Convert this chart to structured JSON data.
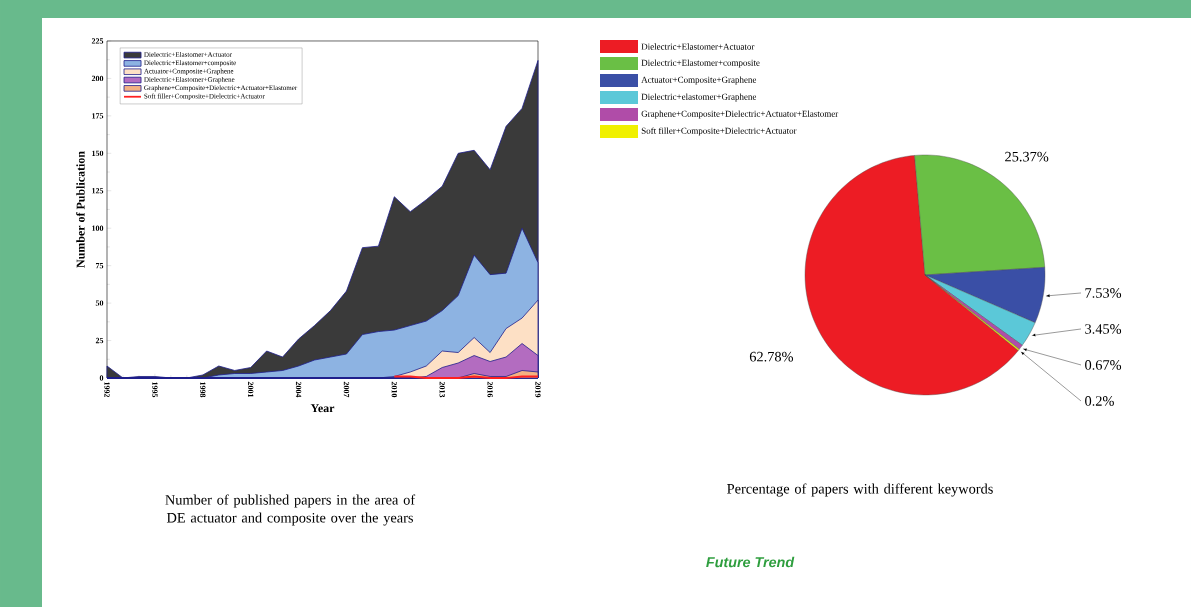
{
  "chart_data": [
    {
      "type": "area",
      "title": "Number of published papers in the area of DE actuator and composite over the years",
      "xlabel": "Year",
      "ylabel": "Number of Publication",
      "x": [
        1992,
        1993,
        1994,
        1995,
        1996,
        1997,
        1998,
        1999,
        2000,
        2001,
        2002,
        2003,
        2004,
        2005,
        2006,
        2007,
        2008,
        2009,
        2010,
        2011,
        2012,
        2013,
        2014,
        2015,
        2016,
        2017,
        2018,
        2019
      ],
      "xlim": [
        1992,
        2019
      ],
      "xticks": [
        1992,
        1995,
        1998,
        2001,
        2004,
        2007,
        2010,
        2013,
        2016,
        2019
      ],
      "ylim": [
        0,
        225
      ],
      "yticks": [
        0,
        25,
        50,
        75,
        100,
        125,
        150,
        175,
        200,
        225
      ],
      "legend": "top left",
      "series": [
        {
          "name": "Dielectric+Elastomer+Actuator",
          "color": "#3a3a3a",
          "values": [
            8,
            0,
            1,
            1,
            0,
            0,
            2,
            8,
            5,
            7,
            18,
            14,
            26,
            35,
            45,
            58,
            87,
            88,
            121,
            111,
            119,
            128,
            150,
            152,
            139,
            168,
            180,
            212
          ]
        },
        {
          "name": "Dielectric+Elastomer+composite",
          "color": "#8db3e2",
          "values": [
            0,
            0,
            0,
            0,
            0,
            0,
            0,
            2,
            3,
            3,
            4,
            5,
            8,
            12,
            14,
            16,
            29,
            31,
            32,
            35,
            38,
            45,
            55,
            82,
            69,
            70,
            100,
            77
          ]
        },
        {
          "name": "Actuator+Composite+Graphene",
          "color": "#fde0c5",
          "values": [
            0,
            0,
            0,
            0,
            0,
            0,
            0,
            0,
            0,
            0,
            0,
            0,
            0,
            0,
            0,
            0,
            0,
            0,
            1,
            4,
            8,
            18,
            17,
            27,
            17,
            33,
            40,
            52
          ]
        },
        {
          "name": "Dielectric+Elastomer+Graphene",
          "color": "#b36cc0",
          "values": [
            0,
            0,
            0,
            0,
            0,
            0,
            0,
            0,
            0,
            0,
            0,
            0,
            0,
            0,
            0,
            0,
            0,
            0,
            0,
            0,
            1,
            7,
            10,
            15,
            11,
            14,
            23,
            15
          ]
        },
        {
          "name": "Graphene+Composite+Dielectric+Actuator+Elastomer",
          "color": "#f4b183",
          "values": [
            0,
            0,
            0,
            0,
            0,
            0,
            0,
            0,
            0,
            0,
            0,
            0,
            0,
            0,
            0,
            0,
            0,
            0,
            0,
            0,
            0,
            0,
            0,
            3,
            1,
            1,
            5,
            4
          ]
        },
        {
          "name": "Soft filler+Composite+Dielectric+Actuator",
          "color": "#ff2020",
          "type": "line",
          "values": [
            null,
            null,
            null,
            null,
            null,
            null,
            null,
            null,
            null,
            null,
            null,
            null,
            null,
            null,
            null,
            null,
            null,
            null,
            1,
            1,
            0,
            0,
            0,
            1,
            0,
            0,
            1,
            1
          ]
        }
      ]
    },
    {
      "type": "pie",
      "title": "Percentage of papers with different keywords",
      "annotations": [
        "Future Trend"
      ],
      "categories": [
        "Dielectric+Elastomer+Actuator",
        "Dielectric+Elastomer+composite",
        "Actuator+Composite+Graphene",
        "Dielectric+elastomer+Graphene",
        "Graphene+Composite+Dielectric+Actuator+Elastomer",
        "Soft filler+Composite+Dielectric+Actuator"
      ],
      "values": [
        62.78,
        25.37,
        7.53,
        3.45,
        0.67,
        0.2
      ],
      "value_labels": [
        "62.78%",
        "25.37%",
        "7.53%",
        "3.45%",
        "0.67%",
        "0.2%"
      ],
      "colors": [
        "#ed1c24",
        "#6abf45",
        "#3a4fa6",
        "#5bc8d8",
        "#b04ca8",
        "#f0f000"
      ],
      "legend": "top left"
    }
  ]
}
